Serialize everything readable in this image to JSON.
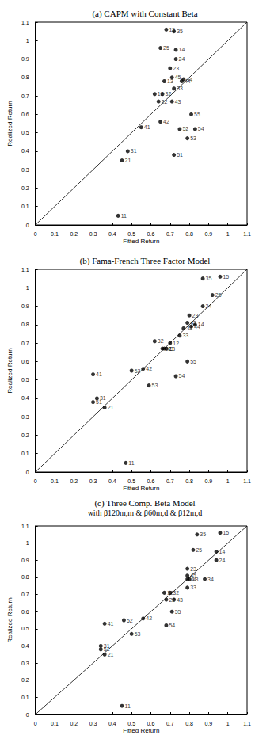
{
  "chart_data": [
    {
      "type": "scatter",
      "title": "(a) CAPM with Constant Beta",
      "x_label": "Fitted Return",
      "y_label": "Realized Return",
      "color": "#000000",
      "grid": false,
      "xlim": [
        0,
        1.1
      ],
      "ylim": [
        0,
        1.1
      ],
      "xticks": [
        0,
        0.1,
        0.2,
        0.3,
        0.4,
        0.5,
        0.6,
        0.7,
        0.8,
        0.9,
        1,
        1.1
      ],
      "yticks": [
        0,
        0.1,
        0.2,
        0.3,
        0.4,
        0.5,
        0.6,
        0.7,
        0.8,
        0.9,
        1,
        1.1
      ],
      "labels": [
        "11",
        "12",
        "13",
        "14",
        "15",
        "21",
        "22",
        "23",
        "24",
        "25",
        "31",
        "32",
        "33",
        "34",
        "35",
        "41",
        "42",
        "43",
        "44",
        "45",
        "51",
        "52",
        "53",
        "54",
        "55"
      ],
      "x": [
        0.43,
        0.62,
        0.67,
        0.73,
        0.68,
        0.45,
        0.64,
        0.7,
        0.73,
        0.65,
        0.48,
        0.66,
        0.72,
        0.77,
        0.72,
        0.55,
        0.65,
        0.71,
        0.76,
        0.71,
        0.72,
        0.75,
        0.79,
        0.83,
        0.81
      ],
      "y": [
        0.05,
        0.71,
        0.78,
        0.95,
        1.06,
        0.35,
        0.67,
        0.85,
        0.9,
        0.96,
        0.4,
        0.71,
        0.74,
        0.79,
        1.05,
        0.53,
        0.56,
        0.67,
        0.78,
        0.8,
        0.38,
        0.52,
        0.47,
        0.52,
        0.6
      ]
    },
    {
      "type": "scatter",
      "title": "(b) Fama-French Three Factor Model",
      "x_label": "Fitted Return",
      "y_label": "Realized Return",
      "color": "#000000",
      "grid": false,
      "xlim": [
        0,
        1.1
      ],
      "ylim": [
        0,
        1.1
      ],
      "xticks": [
        0,
        0.1,
        0.2,
        0.3,
        0.4,
        0.5,
        0.6,
        0.7,
        0.8,
        0.9,
        1,
        1.1
      ],
      "yticks": [
        0,
        0.1,
        0.2,
        0.3,
        0.4,
        0.5,
        0.6,
        0.7,
        0.8,
        0.9,
        1,
        1.1
      ],
      "labels": [
        "11",
        "12",
        "13",
        "14",
        "15",
        "21",
        "22",
        "23",
        "24",
        "25",
        "31",
        "32",
        "33",
        "34",
        "35",
        "41",
        "42",
        "43",
        "44",
        "45",
        "51",
        "52",
        "53",
        "54",
        "55"
      ],
      "x": [
        0.47,
        0.7,
        0.68,
        0.83,
        0.96,
        0.36,
        0.66,
        0.8,
        0.87,
        0.92,
        0.32,
        0.62,
        0.75,
        0.77,
        0.87,
        0.3,
        0.56,
        0.67,
        0.81,
        0.79,
        0.3,
        0.5,
        0.59,
        0.73,
        0.79
      ],
      "y": [
        0.05,
        0.7,
        0.67,
        0.8,
        1.06,
        0.35,
        0.67,
        0.85,
        0.9,
        0.96,
        0.4,
        0.71,
        0.74,
        0.78,
        1.05,
        0.53,
        0.56,
        0.67,
        0.79,
        0.81,
        0.38,
        0.55,
        0.47,
        0.52,
        0.6
      ]
    },
    {
      "type": "scatter",
      "title": "(c) Three Comp. Beta Model",
      "subtitle": "with β120m,m & β60m,d & β12m,d",
      "x_label": "Fitted Return",
      "y_label": "Realized Return",
      "color": "#000000",
      "grid": false,
      "xlim": [
        0,
        1.1
      ],
      "ylim": [
        0,
        1.1
      ],
      "xticks": [
        0,
        0.1,
        0.2,
        0.3,
        0.4,
        0.5,
        0.6,
        0.7,
        0.8,
        0.9,
        1,
        1.1
      ],
      "yticks": [
        0,
        0.1,
        0.2,
        0.3,
        0.4,
        0.5,
        0.6,
        0.7,
        0.8,
        0.9,
        1,
        1.1
      ],
      "labels": [
        "11",
        "12",
        "13",
        "14",
        "15",
        "21",
        "22",
        "23",
        "24",
        "25",
        "31",
        "32",
        "33",
        "34",
        "35",
        "41",
        "42",
        "43",
        "44",
        "45",
        "51",
        "52",
        "53",
        "54",
        "55"
      ],
      "x": [
        0.45,
        0.67,
        0.8,
        0.94,
        0.96,
        0.36,
        0.68,
        0.79,
        0.94,
        0.82,
        0.34,
        0.7,
        0.79,
        0.88,
        0.84,
        0.36,
        0.56,
        0.72,
        0.79,
        0.79,
        0.34,
        0.46,
        0.5,
        0.68,
        0.71
      ],
      "y": [
        0.05,
        0.71,
        0.79,
        0.95,
        1.06,
        0.35,
        0.67,
        0.85,
        0.9,
        0.96,
        0.4,
        0.71,
        0.74,
        0.79,
        1.05,
        0.53,
        0.56,
        0.67,
        0.79,
        0.81,
        0.38,
        0.55,
        0.47,
        0.52,
        0.6
      ]
    }
  ]
}
